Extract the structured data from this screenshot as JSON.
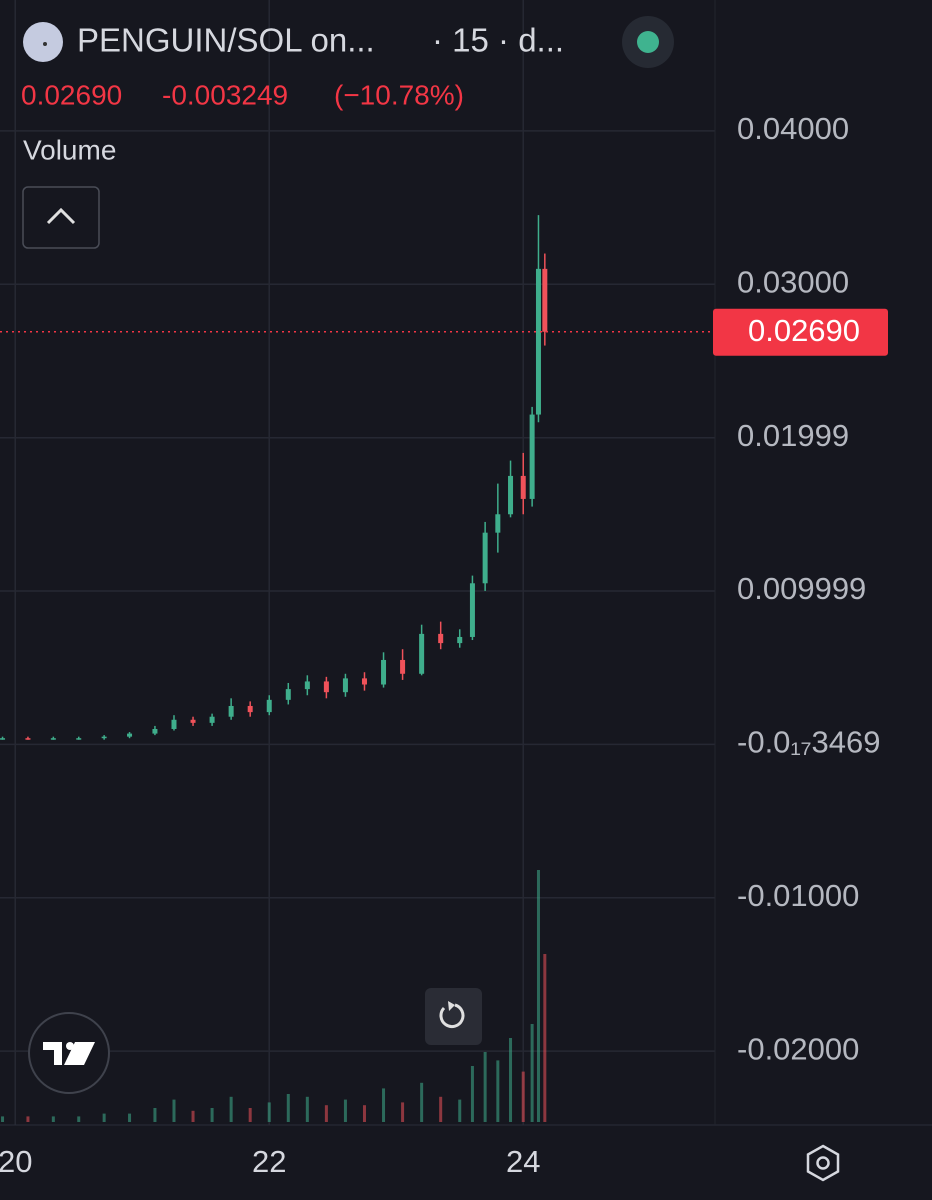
{
  "header": {
    "title": "PENGUIN/SOL on...",
    "meta": "· 15 · d...",
    "price": "0.02690",
    "change": "-0.003249",
    "change_pct": "(−10.78%)"
  },
  "chart_data": {
    "type": "candlestick",
    "x": [
      19.9,
      20.1,
      20.3,
      20.5,
      20.7,
      20.9,
      21.1,
      21.25,
      21.4,
      21.55,
      21.7,
      21.85,
      22.0,
      22.15,
      22.3,
      22.45,
      22.6,
      22.75,
      22.9,
      23.05,
      23.2,
      23.35,
      23.5,
      23.6,
      23.7,
      23.8,
      23.9,
      24.0,
      24.07,
      24.12,
      24.17
    ],
    "open": [
      0.0004,
      0.0004,
      0.0003,
      0.0004,
      0.0004,
      0.0005,
      0.0007,
      0.001,
      0.0016,
      0.0014,
      0.0018,
      0.0025,
      0.0021,
      0.0029,
      0.0036,
      0.0041,
      0.0034,
      0.0043,
      0.0039,
      0.0055,
      0.0046,
      0.0072,
      0.0066,
      0.007,
      0.0105,
      0.0138,
      0.015,
      0.0175,
      0.016,
      0.0215,
      0.031
    ],
    "high": [
      0.0005,
      0.0005,
      0.0005,
      0.0005,
      0.0006,
      0.0008,
      0.0012,
      0.0019,
      0.0018,
      0.002,
      0.003,
      0.0028,
      0.0032,
      0.004,
      0.0045,
      0.0044,
      0.0046,
      0.0047,
      0.006,
      0.0062,
      0.0078,
      0.008,
      0.0075,
      0.011,
      0.0145,
      0.017,
      0.0185,
      0.019,
      0.022,
      0.0345,
      0.032
    ],
    "low": [
      0.0003,
      0.0003,
      0.0003,
      0.0003,
      0.0003,
      0.0004,
      0.0006,
      0.0009,
      0.0012,
      0.0012,
      0.0016,
      0.0018,
      0.0019,
      0.0026,
      0.0032,
      0.003,
      0.0031,
      0.0035,
      0.0037,
      0.0042,
      0.0045,
      0.0062,
      0.0063,
      0.0068,
      0.01,
      0.0125,
      0.0148,
      0.015,
      0.0155,
      0.021,
      0.026
    ],
    "close": [
      0.0004,
      0.0003,
      0.0004,
      0.0004,
      0.0005,
      0.0007,
      0.001,
      0.0016,
      0.0014,
      0.0018,
      0.0025,
      0.0021,
      0.0029,
      0.0036,
      0.0041,
      0.0034,
      0.0043,
      0.0039,
      0.0055,
      0.0046,
      0.0072,
      0.0066,
      0.007,
      0.0105,
      0.0138,
      0.015,
      0.0175,
      0.016,
      0.0215,
      0.031,
      0.0269
    ],
    "up_color": "#3fae8c",
    "down_color": "#f0525a",
    "volume": {
      "name": "Volume",
      "values": [
        2,
        2,
        2,
        2,
        3,
        3,
        5,
        8,
        4,
        5,
        9,
        5,
        7,
        10,
        9,
        6,
        8,
        6,
        12,
        7,
        14,
        9,
        8,
        20,
        25,
        22,
        30,
        18,
        35,
        90,
        60
      ],
      "lim": [
        0,
        100
      ]
    },
    "xlim": [
      19.88,
      25.51
    ],
    "xticks": [
      20,
      22,
      24
    ],
    "ylim": [
      -0.02482,
      0.04853
    ],
    "yticks": [
      {
        "value": 0.04,
        "label": "0.04000"
      },
      {
        "value": 0.03,
        "label": "0.03000"
      },
      {
        "value": 0.01999,
        "label": "0.01999"
      },
      {
        "value": 0.009999,
        "label": "0.009999"
      },
      {
        "value": -3.469e-21,
        "label": "-0.0₁₇3469"
      },
      {
        "value": -0.01,
        "label": "-0.01000"
      },
      {
        "value": -0.02,
        "label": "-0.02000"
      }
    ],
    "last_price": {
      "value": 0.0269,
      "label": "0.02690"
    },
    "grid": true
  }
}
